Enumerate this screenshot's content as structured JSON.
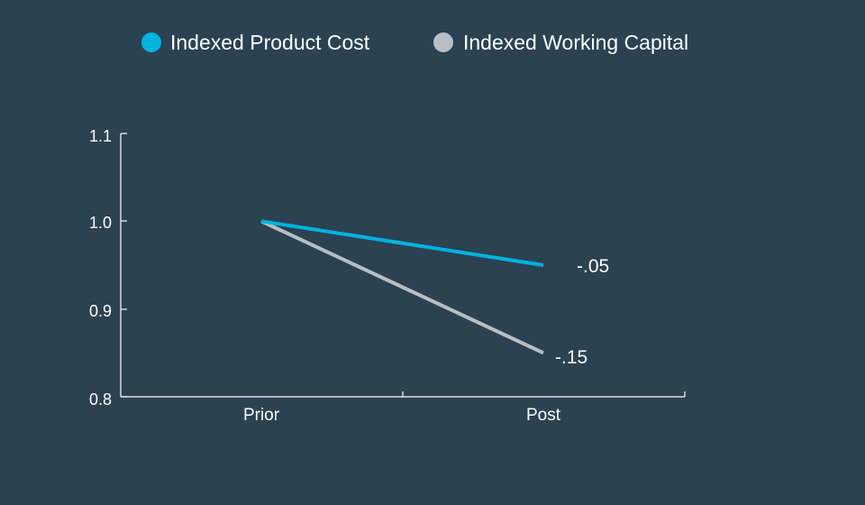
{
  "chart_data": {
    "type": "line",
    "title": "",
    "xlabel": "",
    "ylabel": "",
    "categories": [
      "Prior",
      "Post"
    ],
    "ylim": [
      0.8,
      1.1
    ],
    "yticks": [
      "0.8",
      "0.9",
      "1.0",
      "1.1"
    ],
    "grid": false,
    "legend_placement": "top-center",
    "series": [
      {
        "name": "Indexed Product Cost",
        "values": [
          1.0,
          0.95
        ],
        "color": "#00b4e0",
        "end_label": "-.05"
      },
      {
        "name": "Indexed Working Capital",
        "values": [
          1.0,
          0.85
        ],
        "color": "#b7bfc4",
        "end_label": "-.15"
      }
    ]
  },
  "colors": {
    "background": "#2a4252",
    "axis": "#ffffff",
    "text": "#ffffff"
  }
}
